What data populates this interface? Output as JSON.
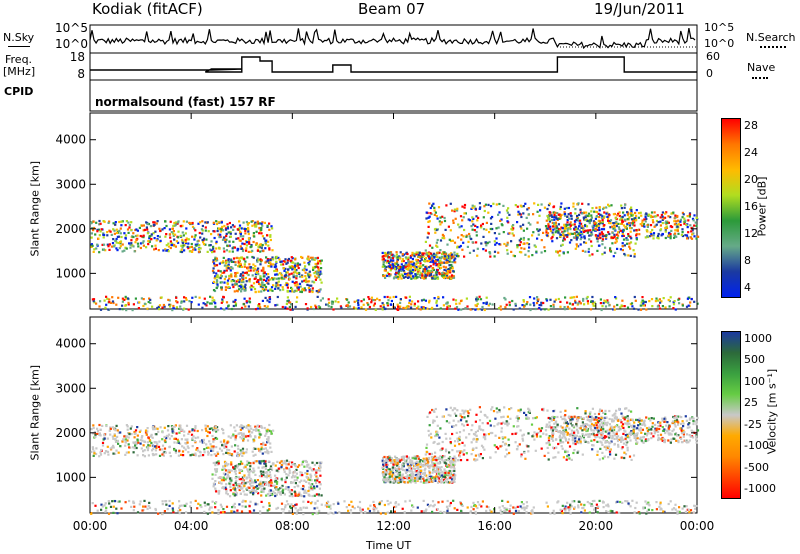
{
  "header": {
    "station": "Kodiak (fitACF)",
    "beam": "Beam 07",
    "date": "19/Jun/2011"
  },
  "top_panels": {
    "nsky_label": "N.Sky",
    "nsky_ticks": [
      "10^5",
      "10^0"
    ],
    "nsearch_label": "N.Search",
    "nsearch_ticks": [
      "10^5",
      "10^0"
    ],
    "freq_label": "Freq.",
    "freq_unit": "[MHz]",
    "freq_ticks": [
      "18",
      "8"
    ],
    "nave_label": "Nave",
    "nave_ticks": [
      "60",
      "0"
    ],
    "cpid_label": "CPID",
    "mode_text": "normalsound (fast) 157 RF"
  },
  "chart_data": [
    {
      "type": "heatmap",
      "ylabel": "Slant Range [km]",
      "yticks": [
        "4000",
        "3000",
        "2000",
        "1000"
      ],
      "ylim": [
        200,
        4600
      ],
      "xlim": [
        0,
        24
      ],
      "colorbar_label": "Power [dB]",
      "colorbar_ticks": [
        "28",
        "24",
        "20",
        "16",
        "12",
        "8",
        "4"
      ],
      "colorbar_colors": [
        "#ff0000",
        "#ff7700",
        "#ffbb00",
        "#b0dd20",
        "#2c9a3a",
        "#66aa88",
        "#1b3aa0",
        "#0022ee"
      ]
    },
    {
      "type": "heatmap",
      "ylabel": "Slant Range [km]",
      "yticks": [
        "4000",
        "3000",
        "2000",
        "1000"
      ],
      "ylim": [
        200,
        4600
      ],
      "xlim": [
        0,
        24
      ],
      "colorbar_label": "Velocity [m s⁻¹]",
      "colorbar_ticks": [
        "1000",
        "500",
        "100",
        "25",
        "-25",
        "-100",
        "-500",
        "-1000"
      ],
      "colorbar_colors": [
        "#1b3aa0",
        "#2c6a3a",
        "#3aa040",
        "#66cc44",
        "#c8c8c8",
        "#ffaa00",
        "#ff8800",
        "#ff4400",
        "#ff0000"
      ]
    }
  ],
  "x_axis": {
    "ticks": [
      "00:00",
      "04:00",
      "08:00",
      "12:00",
      "16:00",
      "20:00",
      "00:00"
    ],
    "label": "Time UT"
  }
}
